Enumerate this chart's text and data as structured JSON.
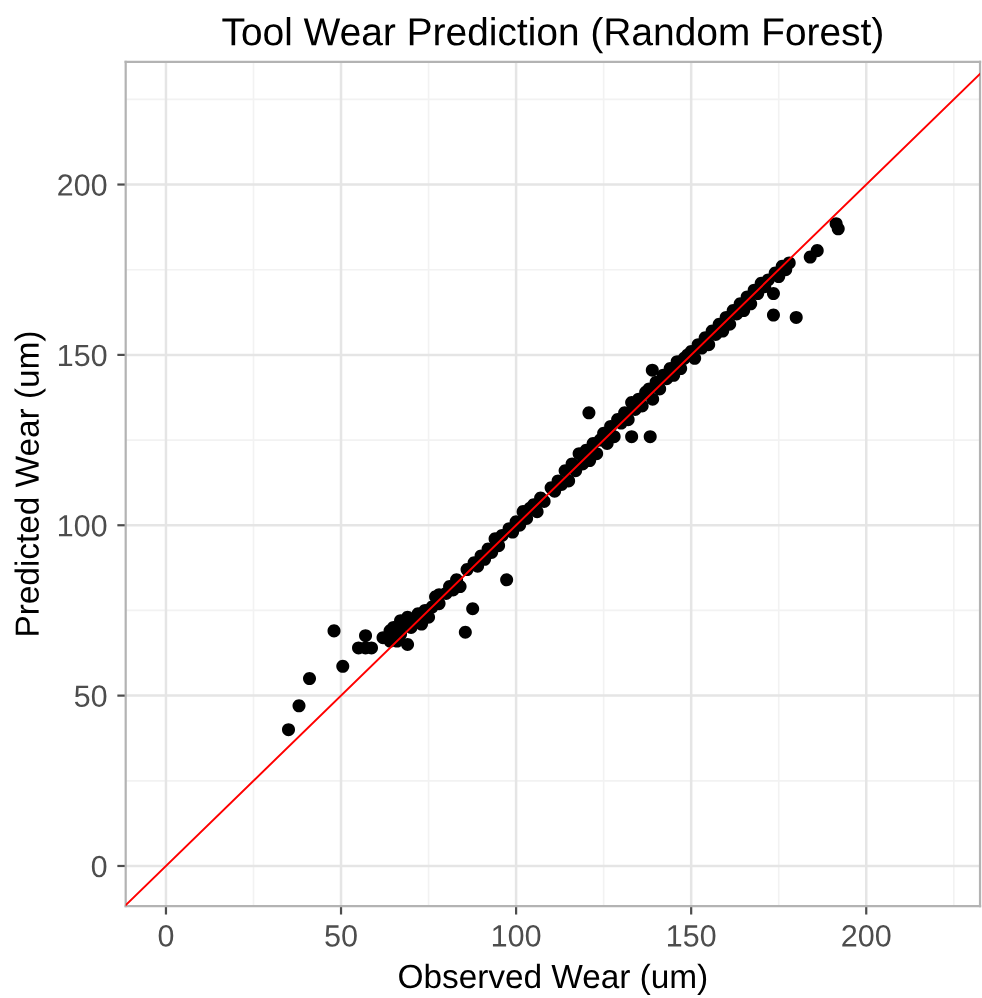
{
  "chart_data": {
    "type": "scatter",
    "title": "Tool Wear Prediction (Random Forest)",
    "xlabel": "Observed Wear (um)",
    "ylabel": "Predicted Wear (um)",
    "xlim": [
      -11.5,
      232.5
    ],
    "ylim": [
      -11.8,
      236
    ],
    "xticks": [
      0,
      50,
      100,
      150,
      200
    ],
    "yticks": [
      0,
      50,
      100,
      150,
      200
    ],
    "grid": true,
    "marker": "circle",
    "legend": false,
    "series": [
      {
        "color": "#000000",
        "x": [
          35,
          38,
          41,
          48,
          50.5,
          55,
          57,
          58.7,
          64,
          69,
          57,
          62,
          64,
          65,
          66,
          67,
          67,
          68,
          69,
          70,
          71,
          72,
          73,
          74,
          75,
          76,
          77,
          78,
          78,
          80,
          81,
          82,
          83,
          84,
          85.5,
          86,
          87.6,
          88,
          89,
          90,
          91,
          92,
          93,
          94,
          95,
          96,
          97.3,
          98,
          99,
          100,
          101,
          102,
          103,
          104,
          105,
          106,
          107,
          108,
          110,
          111,
          112,
          113,
          114,
          115,
          116,
          117,
          118,
          119,
          120,
          120.8,
          121,
          122,
          123,
          124,
          125,
          126,
          127,
          128,
          129,
          130,
          131,
          132,
          133,
          133,
          134,
          135,
          136,
          137,
          138,
          138.3,
          138.9,
          139,
          140,
          141,
          142,
          143,
          144,
          145,
          146,
          147,
          148,
          149,
          150,
          151,
          152,
          153,
          154,
          155,
          156,
          157,
          158,
          159,
          160,
          161,
          162,
          163,
          164,
          165,
          166,
          167,
          168,
          169,
          170,
          171,
          172,
          173.5,
          173.5,
          174,
          175,
          176,
          177,
          178,
          180,
          184,
          186,
          191.4,
          192
        ],
        "values": [
          40,
          47,
          55,
          69,
          58.6,
          64,
          67.6,
          64,
          66,
          65,
          64,
          67,
          69,
          70,
          66,
          72,
          68,
          71,
          73,
          70,
          72,
          74,
          71,
          75,
          73,
          76,
          79,
          77,
          79.6,
          80,
          82,
          81,
          84,
          82,
          68.6,
          87,
          75.5,
          89,
          88,
          91,
          90,
          93,
          92,
          96,
          94,
          97,
          84,
          99,
          98,
          101,
          100,
          104,
          102,
          105,
          106,
          104,
          108,
          107,
          111,
          110,
          113,
          112,
          116,
          113,
          118,
          116,
          121,
          118,
          122,
          133,
          119,
          124,
          121,
          125,
          127,
          124,
          129,
          126,
          131,
          130,
          133,
          131,
          126,
          136,
          134,
          137,
          135,
          139,
          140,
          126,
          145.5,
          137,
          142,
          140,
          144,
          143,
          146,
          144,
          148,
          146,
          149,
          150,
          151,
          149,
          153,
          152,
          155,
          153,
          157,
          156,
          159,
          157,
          161,
          159,
          163,
          162,
          165,
          163,
          167,
          165,
          169,
          168,
          171,
          170,
          172,
          161.7,
          168,
          174,
          173,
          176,
          175,
          177,
          161,
          178.7,
          180.6,
          188.5,
          187
        ]
      },
      {
        "type": "line",
        "color": "#ff0000",
        "marker": "none",
        "line_style": "solid",
        "x": [
          -11.5,
          232.5
        ],
        "values": [
          -11.5,
          232.5
        ]
      }
    ]
  }
}
